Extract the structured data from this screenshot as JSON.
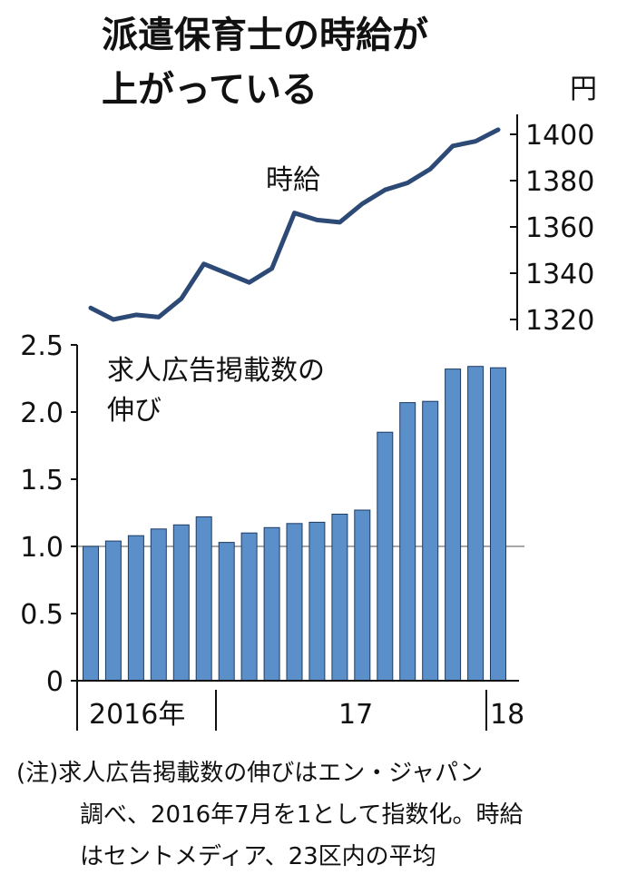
{
  "title_lines": [
    "派遣保育士の時給が",
    "上がっている"
  ],
  "colors": {
    "line": "#2c4a75",
    "bar": "#5b8fc9",
    "bar_edge": "#1f3b63",
    "axis": "#111111"
  },
  "chart_data": [
    {
      "type": "line",
      "series_label": "時給",
      "unit": "円",
      "y_ticks": [
        1400,
        1380,
        1360,
        1340,
        1320
      ],
      "ylim": [
        1315,
        1410
      ],
      "values": [
        1325,
        1320,
        1322,
        1321,
        1329,
        1344,
        1340,
        1336,
        1342,
        1366,
        1363,
        1362,
        1370,
        1376,
        1379,
        1385,
        1395,
        1397,
        1402
      ]
    },
    {
      "type": "bar",
      "series_label_lines": [
        "求人広告掲載数の",
        "伸び"
      ],
      "y_ticks": [
        "2.5",
        "2.0",
        "1.5",
        "1.0",
        "0.5",
        "0"
      ],
      "ylim": [
        0,
        2.5
      ],
      "reference_line": 1.0,
      "values": [
        1.0,
        1.04,
        1.08,
        1.13,
        1.16,
        1.22,
        1.03,
        1.1,
        1.14,
        1.17,
        1.18,
        1.24,
        1.27,
        1.85,
        2.07,
        2.08,
        2.32,
        2.34,
        2.33
      ],
      "x_labels": [
        "2016年",
        "17",
        "18"
      ]
    }
  ],
  "note_lines": [
    "(注)求人広告掲載数の伸びはエン・ジャパン",
    "調べ、2016年7月を1として指数化。時給",
    "はセントメディア、23区内の平均"
  ]
}
